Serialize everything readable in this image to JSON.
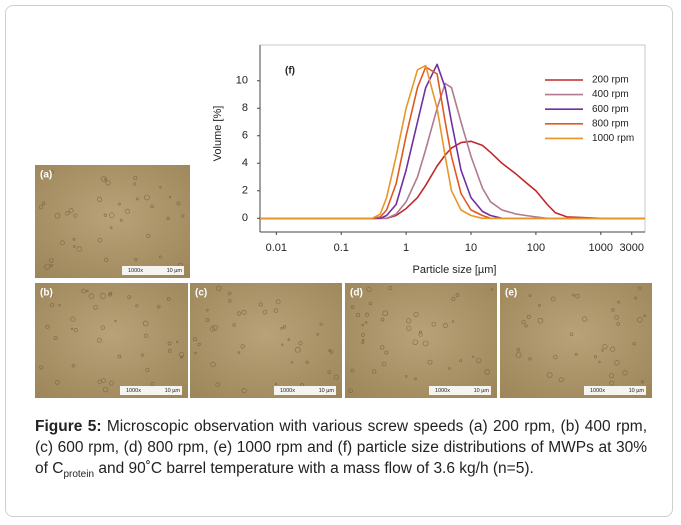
{
  "chart_data": {
    "type": "line",
    "annotation": "(f)",
    "xlabel": "Particle size [µm]",
    "ylabel": "Volume [%]",
    "xscale": "log",
    "xlim": [
      0.0056,
      4800
    ],
    "xticks": [
      0.01,
      0.1,
      1,
      10,
      100,
      1000,
      3000
    ],
    "ylim": [
      -1,
      12.6
    ],
    "yticks": [
      0,
      2,
      4,
      6,
      8,
      10
    ],
    "legend": "upper right",
    "x": [
      0.0056,
      0.3,
      0.4,
      0.5,
      0.7,
      1,
      1.5,
      2,
      3,
      4,
      5,
      7,
      10,
      15,
      20,
      30,
      50,
      70,
      100,
      150,
      200,
      300,
      1000,
      4800
    ],
    "series": [
      {
        "name": "200 rpm",
        "color": "#c0282a",
        "values": [
          0,
          0,
          0,
          0,
          0.2,
          0.7,
          1.5,
          2.4,
          3.8,
          4.6,
          5.1,
          5.5,
          5.6,
          5.3,
          4.8,
          4,
          3.2,
          2.6,
          2,
          1,
          0.4,
          0.1,
          0,
          0
        ]
      },
      {
        "name": "400 rpm",
        "color": "#b07a90",
        "values": [
          0,
          0,
          0,
          0,
          0.3,
          1.2,
          3,
          5,
          8,
          9.8,
          9.5,
          7,
          4.5,
          2.2,
          1.2,
          0.6,
          0.3,
          0.2,
          0.1,
          0,
          0,
          0,
          0,
          0
        ]
      },
      {
        "name": "600 rpm",
        "color": "#7030a0",
        "values": [
          0,
          0,
          0,
          0.2,
          1,
          3.5,
          7,
          9.5,
          11.2,
          9.5,
          7,
          3.5,
          1.5,
          0.5,
          0.2,
          0,
          0,
          0,
          0,
          0,
          0,
          0,
          0,
          0
        ]
      },
      {
        "name": "800 rpm",
        "color": "#e05a20",
        "values": [
          0,
          0,
          0.1,
          0.6,
          2.5,
          6,
          9.5,
          11,
          10.5,
          7,
          4.5,
          1.8,
          0.6,
          0.2,
          0,
          0,
          0,
          0,
          0,
          0,
          0,
          0,
          0,
          0
        ]
      },
      {
        "name": "1000 rpm",
        "color": "#e8962a",
        "values": [
          0,
          0,
          0.3,
          1.5,
          4.5,
          8,
          10.8,
          11.1,
          8,
          4.5,
          2,
          0.6,
          0.2,
          0,
          0,
          0,
          0,
          0,
          0,
          0,
          0,
          0,
          0,
          0
        ]
      }
    ]
  },
  "panels": [
    {
      "label": "(a)",
      "magnification": "1000x",
      "scale": "10 µm"
    },
    {
      "label": "(b)",
      "magnification": "1000x",
      "scale": "10 µm"
    },
    {
      "label": "(c)",
      "magnification": "1000x",
      "scale": "10 µm"
    },
    {
      "label": "(d)",
      "magnification": "1000x",
      "scale": "10 µm"
    },
    {
      "label": "(e)",
      "magnification": "1000x",
      "scale": "10 µm"
    }
  ],
  "caption": {
    "label": "Figure 5:",
    "text1": " Microscopic observation with various screw speeds (a) 200 rpm, (b) 400 rpm, (c) 600 rpm, (d) 800 rpm, (e) 1000 rpm and (f) particle size distributions of MWPs at 30% of C",
    "sub": "protein",
    "text2": " and 90˚C barrel temperature with a mass flow of 3.6 kg/h (n=5)."
  }
}
